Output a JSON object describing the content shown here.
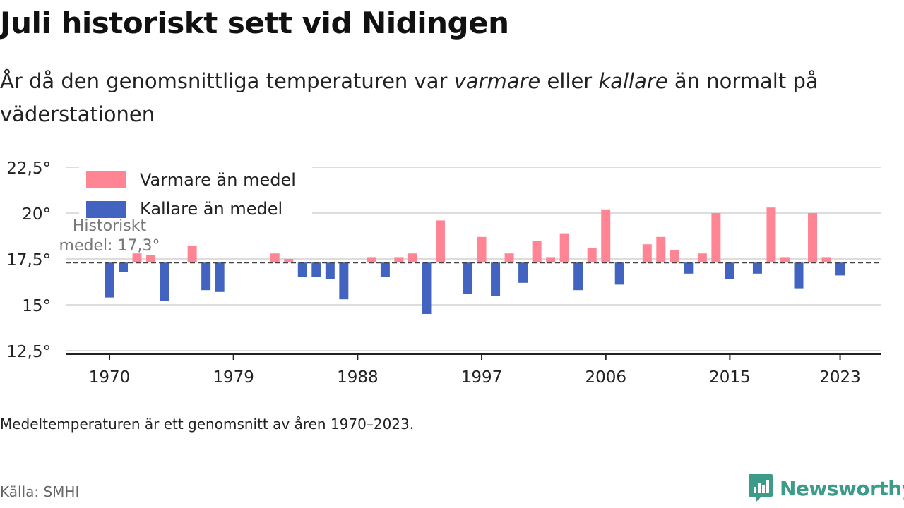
{
  "header": {
    "title": "Juli historiskt sett vid Nidingen",
    "subtitle_part1": "År då den genomsnittliga temperaturen var ",
    "subtitle_warm": "varmare",
    "subtitle_part2": " eller ",
    "subtitle_cold": "kallare",
    "subtitle_part3": " än normalt på väderstationen"
  },
  "chart_data": {
    "type": "bar",
    "baseline": 17.3,
    "baseline_label_line1": "Historiskt",
    "baseline_label_line2": "medel: 17,3°",
    "ylim": [
      12.5,
      22.5
    ],
    "yticks": [
      12.5,
      15,
      17.5,
      20,
      22.5
    ],
    "ytick_labels": [
      "12,5°",
      "15°",
      "17,5°",
      "20°",
      "22,5°"
    ],
    "xticks": [
      1970,
      1979,
      1988,
      1997,
      2006,
      2015,
      2023
    ],
    "xtick_labels": [
      "1970",
      "1979",
      "1988",
      "1997",
      "2006",
      "2015",
      "2023"
    ],
    "grid": true,
    "legend_position": "top-left",
    "legend": [
      {
        "label": "Varmare än medel",
        "color": "#ff8594"
      },
      {
        "label": "Kallare än medel",
        "color": "#4263c0"
      }
    ],
    "colors": {
      "warm": "#ff8594",
      "cold": "#4263c0",
      "baseline": "#444444",
      "grid": "#dddddd"
    },
    "x": [
      1970,
      1971,
      1972,
      1973,
      1974,
      1975,
      1976,
      1977,
      1978,
      1979,
      1980,
      1981,
      1982,
      1983,
      1984,
      1985,
      1986,
      1987,
      1988,
      1989,
      1990,
      1991,
      1992,
      1993,
      1994,
      1995,
      1996,
      1997,
      1998,
      1999,
      2000,
      2001,
      2002,
      2003,
      2004,
      2005,
      2006,
      2007,
      2008,
      2009,
      2010,
      2011,
      2012,
      2013,
      2014,
      2015,
      2016,
      2017,
      2018,
      2019,
      2020,
      2021,
      2022,
      2023
    ],
    "values": [
      15.4,
      16.8,
      17.8,
      17.7,
      15.2,
      17.3,
      18.2,
      15.8,
      15.7,
      17.3,
      17.3,
      17.3,
      17.8,
      17.5,
      16.5,
      16.5,
      16.4,
      15.3,
      17.3,
      17.6,
      16.5,
      17.6,
      17.8,
      14.5,
      19.6,
      17.3,
      15.6,
      18.7,
      15.5,
      17.8,
      16.2,
      18.5,
      17.6,
      18.9,
      15.8,
      18.1,
      20.2,
      16.1,
      17.3,
      18.3,
      18.7,
      18.0,
      16.7,
      17.8,
      20.0,
      16.4,
      17.3,
      16.7,
      20.3,
      17.6,
      15.9,
      20.0,
      17.6,
      16.6
    ]
  },
  "footer": {
    "note": "Medeltemperaturen är ett genomsnitt av åren 1970–2023.",
    "source": "Källa: SMHI",
    "brand": "Newsworthy"
  }
}
